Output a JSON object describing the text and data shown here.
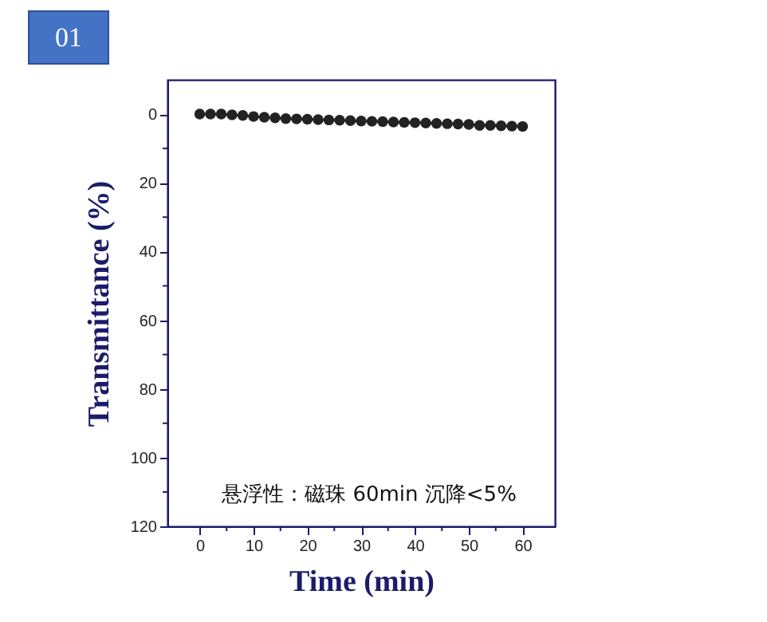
{
  "chart_data": {
    "type": "line",
    "xlabel": "Time (min)",
    "ylabel": "Transmittance (%)",
    "x": [
      0,
      2,
      4,
      6,
      8,
      10,
      12,
      14,
      16,
      18,
      20,
      22,
      24,
      26,
      28,
      30,
      32,
      34,
      36,
      38,
      40,
      42,
      44,
      46,
      48,
      50,
      52,
      54,
      56,
      58,
      60
    ],
    "series": [
      {
        "color": "#222222",
        "values": [
          0,
          0,
          0,
          0.2,
          0.4,
          0.7,
          0.9,
          1.1,
          1.3,
          1.4,
          1.5,
          1.6,
          1.7,
          1.8,
          1.9,
          2.0,
          2.1,
          2.2,
          2.3,
          2.4,
          2.5,
          2.6,
          2.7,
          2.8,
          2.9,
          3.0,
          3.3,
          3.3,
          3.4,
          3.5,
          3.6
        ]
      }
    ],
    "xlim": [
      -6,
      66
    ],
    "ylim": [
      120,
      -10
    ],
    "xticks": [
      0,
      {
        "value": 5,
        "label": null
      },
      10,
      {
        "value": 15,
        "label": null
      },
      20,
      {
        "value": 25,
        "label": null
      },
      30,
      {
        "value": 35,
        "label": null
      },
      40,
      {
        "value": 45,
        "label": null
      },
      50,
      {
        "value": 55,
        "label": null
      },
      60
    ],
    "yticks": [
      0,
      {
        "value": 10,
        "label": null
      },
      20,
      {
        "value": 30,
        "label": null
      },
      40,
      {
        "value": 50,
        "label": null
      },
      60,
      {
        "value": 70,
        "label": null
      },
      80,
      {
        "value": 90,
        "label": null
      },
      100,
      {
        "value": 110,
        "label": null
      },
      120
    ],
    "marker": "circle",
    "line_style": "solid",
    "grid": false,
    "annotations": [
      "01",
      "悬浮性：磁珠 60min 沉降<5%"
    ]
  }
}
